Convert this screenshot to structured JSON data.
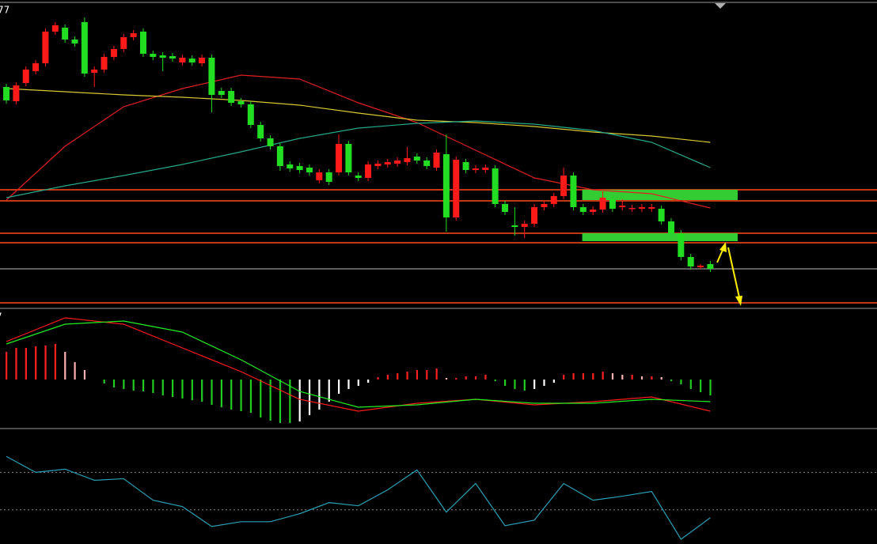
{
  "chart_data": [
    {
      "type": "candlestick",
      "title": "77",
      "xlim": [
        -0.65,
        89.05
      ],
      "ylim": [
        12,
        400
      ],
      "up_color": "#ff1a1a",
      "down_color": "#22dd22",
      "open": [
        290,
        272,
        295,
        310,
        320,
        360,
        365,
        350,
        372,
        308,
        312,
        328,
        338,
        353,
        360,
        332,
        330,
        329,
        321,
        326,
        320,
        327,
        285,
        285,
        272,
        268,
        242,
        225,
        215,
        192,
        190,
        188,
        172,
        182,
        182,
        218,
        178,
        175,
        190,
        192,
        193,
        195,
        202,
        197,
        188,
        205,
        125,
        195,
        185,
        185,
        187,
        142,
        115,
        113,
        117,
        138,
        142,
        152,
        178,
        138,
        132,
        135,
        148,
        138,
        136,
        136,
        136,
        136,
        120,
        105,
        75,
        62,
        66
      ],
      "high": [
        294,
        296,
        316,
        324,
        364,
        372,
        369,
        354,
        378,
        316,
        332,
        342,
        357,
        362,
        364,
        336,
        334,
        333,
        331,
        330,
        331,
        331,
        289,
        289,
        276,
        272,
        246,
        229,
        219,
        196,
        194,
        192,
        186,
        186,
        230,
        222,
        182,
        196,
        197,
        199,
        201,
        214,
        206,
        201,
        211,
        230,
        202,
        199,
        191,
        192,
        191,
        146,
        138,
        121,
        142,
        146,
        156,
        188,
        182,
        142,
        139,
        158,
        152,
        148,
        141,
        142,
        142,
        140,
        124,
        109,
        79,
        66,
        70
      ],
      "low": [
        269,
        268,
        291,
        306,
        316,
        356,
        346,
        341,
        303,
        290,
        308,
        324,
        334,
        349,
        328,
        324,
        310,
        322,
        317,
        317,
        316,
        258,
        276,
        266,
        264,
        238,
        221,
        211,
        184,
        183,
        181,
        178,
        168,
        166,
        178,
        178,
        171,
        171,
        186,
        188,
        189,
        191,
        193,
        186,
        184,
        107,
        121,
        181,
        181,
        181,
        138,
        128,
        102,
        99,
        113,
        134,
        138,
        148,
        134,
        128,
        128,
        131,
        132,
        134,
        132,
        132,
        132,
        116,
        100,
        71,
        59,
        60,
        56
      ],
      "close": [
        273,
        292,
        312,
        320,
        360,
        368,
        350,
        345,
        307,
        312,
        328,
        338,
        353,
        358,
        332,
        328,
        327,
        326,
        327,
        321,
        327,
        280,
        280,
        270,
        268,
        242,
        225,
        215,
        190,
        187,
        185,
        182,
        182,
        170,
        218,
        182,
        175,
        192,
        193,
        195,
        197,
        200,
        197,
        190,
        207,
        125,
        198,
        185,
        187,
        188,
        142,
        132,
        113,
        117,
        138,
        142,
        152,
        178,
        138,
        132,
        135,
        150,
        136,
        140,
        137,
        138,
        138,
        120,
        105,
        75,
        63,
        64,
        60
      ],
      "lines": [
        {
          "color": "#e02020",
          "x": [
            0,
            6,
            12,
            18,
            24,
            30,
            36,
            42,
            48,
            54,
            60,
            66,
            72
          ],
          "values": [
            147,
            215,
            265,
            288,
            305,
            300,
            270,
            245,
            210,
            175,
            160,
            155,
            137
          ]
        },
        {
          "color": "#d8c832",
          "x": [
            0,
            6,
            12,
            18,
            24,
            30,
            36,
            42,
            48,
            54,
            60,
            66,
            72
          ],
          "values": [
            288,
            284,
            280,
            277,
            273,
            267,
            257,
            248,
            245,
            240,
            233,
            228,
            220
          ]
        },
        {
          "color": "#25a88a",
          "x": [
            0,
            6,
            12,
            18,
            24,
            30,
            36,
            42,
            48,
            54,
            60,
            66,
            72
          ],
          "values": [
            150,
            165,
            178,
            192,
            208,
            225,
            238,
            244,
            247,
            243,
            235,
            220,
            188
          ]
        }
      ],
      "levels": [
        {
          "value": 160,
          "color": "#ff4a1a"
        },
        {
          "value": 146,
          "color": "#ff4a1a"
        },
        {
          "value": 105,
          "color": "#ff4a1a"
        },
        {
          "value": 93,
          "color": "#ff4a1a"
        },
        {
          "value": 60,
          "color": "#7a7a7a"
        },
        {
          "value": 17,
          "color": "#ff4a1a"
        }
      ],
      "zones": {
        "color": "#33cc33",
        "x": [
          58.9,
          74.8
        ],
        "ranges": [
          [
            147,
            160
          ],
          [
            95,
            105
          ]
        ]
      }
    },
    {
      "type": "combo",
      "title": "7",
      "xlim": [
        -0.65,
        89.05
      ],
      "ylim": [
        -60,
        88
      ],
      "up_color": "#ff2020",
      "up_fade_color": "#ffb0b0",
      "down_color": "#22cc22",
      "down_fade_color": "#ffffff",
      "values": [
        35,
        40,
        40,
        42,
        43,
        45,
        35,
        22,
        12,
        0,
        -5,
        -10,
        -12,
        -14,
        -15,
        -17,
        -20,
        -22,
        -24,
        -26,
        -28,
        -32,
        -35,
        -38,
        -40,
        -42,
        -48,
        -52,
        -55,
        -55,
        -53,
        -45,
        -38,
        -28,
        -18,
        -12,
        -8,
        -4,
        3,
        6,
        8,
        10,
        12,
        12,
        14,
        2,
        2,
        4,
        4,
        6,
        -2,
        -8,
        -12,
        -14,
        -12,
        -8,
        -4,
        6,
        8,
        8,
        8,
        10,
        8,
        6,
        6,
        4,
        4,
        3,
        -2,
        -6,
        -12,
        -16,
        -20
      ],
      "lines": [
        {
          "color": "#ff1a1a",
          "x": [
            0,
            6,
            12,
            18,
            24,
            30,
            36,
            42,
            48,
            54,
            60,
            66,
            72
          ],
          "values": [
            48,
            78,
            70,
            40,
            10,
            -25,
            -40,
            -30,
            -25,
            -32,
            -28,
            -22,
            -40
          ]
        },
        {
          "color": "#22ee22",
          "x": [
            0,
            6,
            12,
            18,
            24,
            30,
            36,
            42,
            48,
            54,
            60,
            66,
            72
          ],
          "values": [
            45,
            70,
            74,
            60,
            25,
            -15,
            -35,
            -32,
            -25,
            -30,
            -30,
            -25,
            -28
          ]
        }
      ]
    },
    {
      "type": "line",
      "xlim": [
        -0.65,
        89.05
      ],
      "ylim": [
        0,
        143
      ],
      "color": "#2aa0b8",
      "levels": [
        {
          "value": 90,
          "color": "#888888",
          "dashed": true
        },
        {
          "value": 43,
          "color": "#888888",
          "dashed": true
        }
      ],
      "x": [
        0,
        3,
        6,
        9,
        12,
        15,
        18,
        21,
        24,
        27,
        30,
        33,
        36,
        39,
        42,
        45,
        48,
        51,
        54,
        57,
        60,
        63,
        66,
        69,
        72
      ],
      "values": [
        110,
        90,
        94,
        80,
        82,
        55,
        47,
        22,
        28,
        28,
        38,
        52,
        48,
        68,
        93,
        40,
        76,
        23,
        30,
        76,
        55,
        60,
        66,
        6,
        33
      ]
    }
  ]
}
